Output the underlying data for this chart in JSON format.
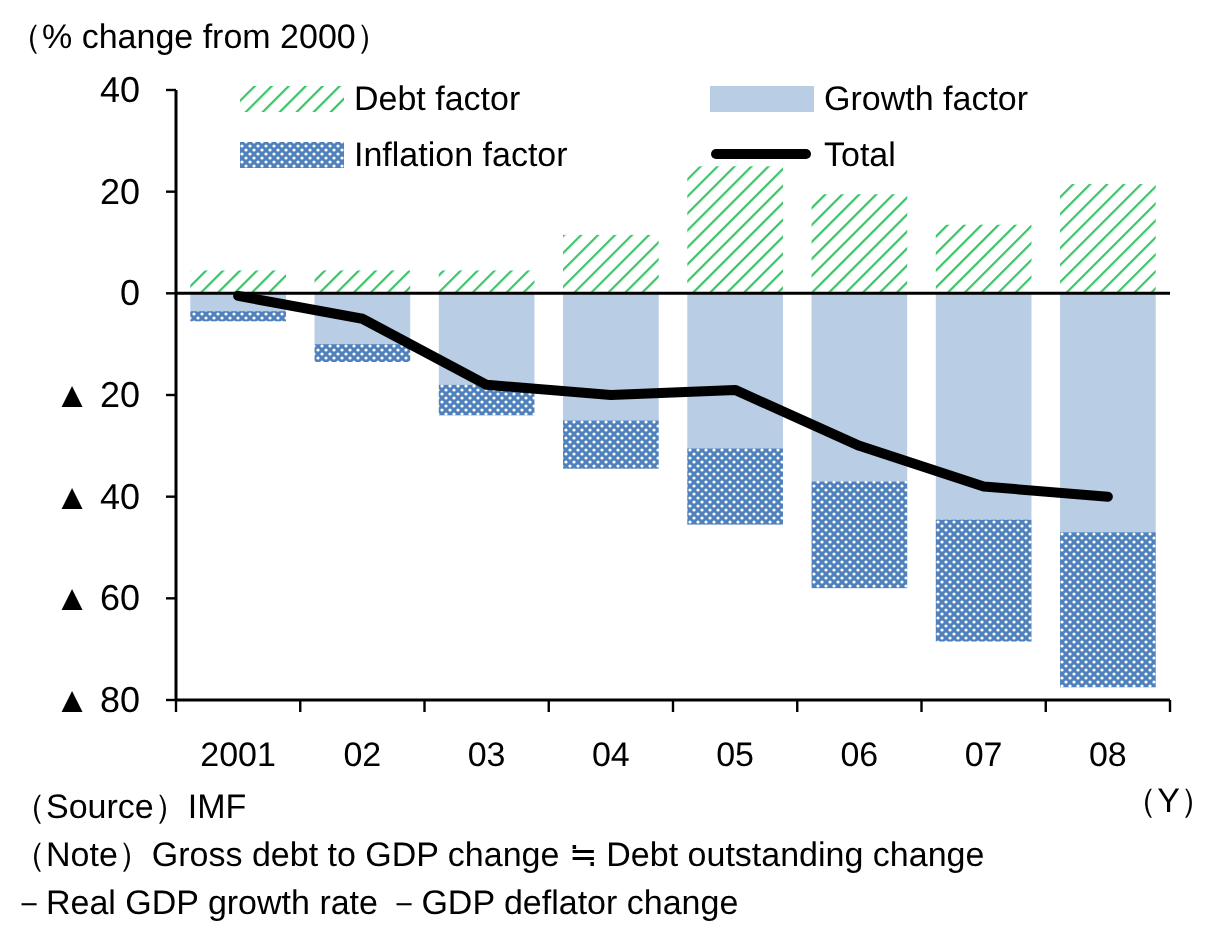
{
  "chart_data": {
    "type": "bar",
    "stacked": true,
    "ylabel": "（% change from 2000）",
    "xlabel": "（Y）",
    "categories": [
      "2001",
      "02",
      "03",
      "04",
      "05",
      "06",
      "07",
      "08"
    ],
    "series": [
      {
        "name": "Debt factor",
        "color": "#3cc36a",
        "values": [
          4.5,
          4.5,
          4.5,
          11.5,
          25,
          19.5,
          13.5,
          21.5
        ]
      },
      {
        "name": "Growth factor",
        "color": "#b9cde5",
        "values": [
          -3.5,
          -10,
          -18,
          -25,
          -30.5,
          -37,
          -44.5,
          -47
        ]
      },
      {
        "name": "Inflation factor",
        "color": "#4f81bd",
        "values": [
          -2,
          -3.5,
          -6,
          -9.5,
          -15,
          -21,
          -24,
          -30.5
        ]
      },
      {
        "name": "Total",
        "type": "line",
        "color": "#000000",
        "values": [
          -0.5,
          -5,
          -18,
          -20,
          -19,
          -30,
          -38,
          -40
        ]
      }
    ],
    "ylim": [
      -80,
      40
    ],
    "yticks": [
      40,
      20,
      0,
      {
        "value": -20,
        "label": "▲ 20"
      },
      {
        "value": -40,
        "label": "▲ 40"
      },
      {
        "value": -60,
        "label": "▲ 60"
      },
      {
        "value": -80,
        "label": "▲ 80"
      }
    ],
    "legend": "top",
    "annotations": [
      "（Source）IMF",
      "（Note）Gross debt to GDP change ≒ Debt outstanding change－Real GDP growth rate －GDP deflator change"
    ]
  }
}
